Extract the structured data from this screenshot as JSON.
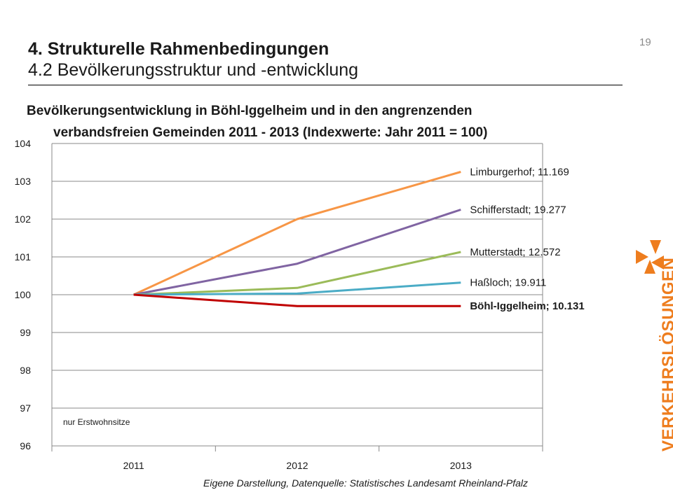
{
  "page_number": "19",
  "header": {
    "title": "4. Strukturelle Rahmenbedingungen",
    "subtitle": "4.2 Bevölkerungsstruktur und -entwicklung"
  },
  "chart_title": {
    "line1": "Bevölkerungsentwicklung  in Böhl-Iggelheim und in den angrenzenden",
    "line2": "verbandsfreien  Gemeinden   2011 - 2013 (Indexwerte: Jahr 2011 = 100)"
  },
  "chart_data": {
    "type": "line",
    "title": "Bevölkerungsentwicklung  in Böhl-Iggelheim und in den angrenzenden verbandsfreien  Gemeinden   2011 - 2013 (Indexwerte: Jahr 2011 = 100)",
    "categories": [
      "2011",
      "2012",
      "2013"
    ],
    "ylim": [
      96,
      104
    ],
    "yticks": [
      "104",
      "103",
      "102",
      "101",
      "100",
      "99",
      "98",
      "97",
      "96"
    ],
    "grid": true,
    "series": [
      {
        "name": "Limburgerhof; 11.169",
        "values": [
          100,
          102.0,
          103.25
        ],
        "color": "#f79646",
        "bold": false
      },
      {
        "name": "Schifferstadt; 19.277",
        "values": [
          100,
          100.82,
          102.25
        ],
        "color": "#8064a2",
        "bold": false
      },
      {
        "name": "Mutterstadt; 12.572",
        "values": [
          100,
          100.18,
          101.13
        ],
        "color": "#9bbb59",
        "bold": false
      },
      {
        "name": "Haßloch; 19.911",
        "values": [
          100,
          100.03,
          100.32
        ],
        "color": "#4bacc6",
        "bold": false
      },
      {
        "name": "Böhl-Iggelheim; 10.131",
        "values": [
          100,
          99.7,
          99.7
        ],
        "color": "#c00000",
        "bold": true
      }
    ],
    "annotation": "nur Erstwohnsitze"
  },
  "source_note": "Eigene Darstellung, Datenquelle: Statistisches Landesamt Rheinland-Pfalz",
  "brand": {
    "text": "VERKEHRSLÖSUNGEN",
    "color": "#ee7d1e",
    "icon": "orange-arrows-logo-icon"
  }
}
